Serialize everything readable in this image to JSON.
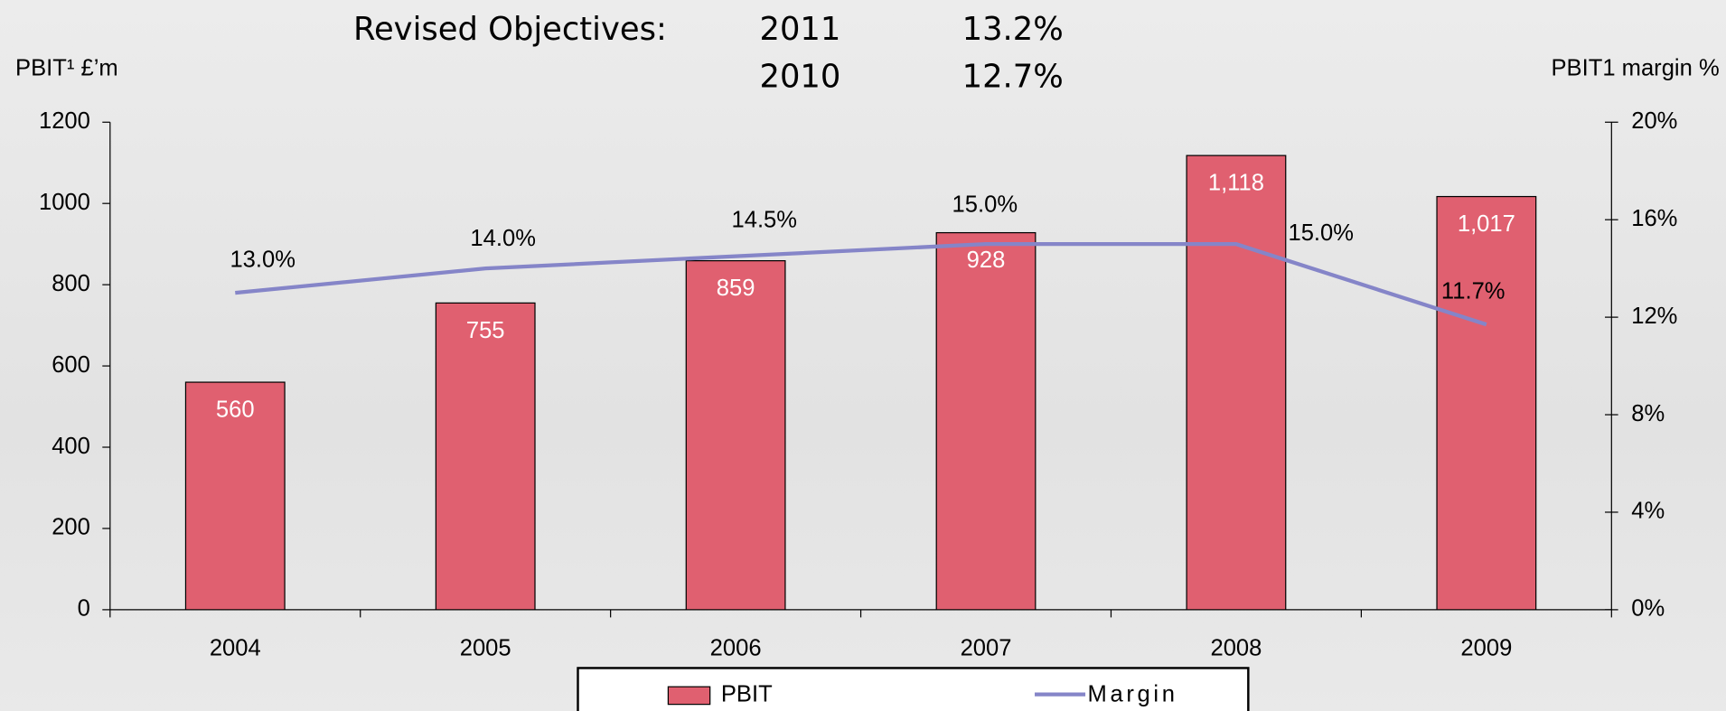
{
  "header": {
    "title": "Revised Objectives:",
    "rows": [
      [
        "2011",
        "13.2%"
      ],
      [
        "2010",
        "12.7%"
      ]
    ]
  },
  "chart_data": {
    "type": "bar",
    "ylabel": "PBIT¹ £’m",
    "y2label": "PBIT1 margin %",
    "categories": [
      "2004",
      "2005",
      "2006",
      "2007",
      "2008",
      "2009"
    ],
    "series": [
      {
        "name": "PBIT",
        "color": "#e06070",
        "values": [
          560,
          755,
          859,
          928,
          1118,
          1017
        ],
        "value_labels": [
          "560",
          "755",
          "859",
          "928",
          "1,118",
          "1,017"
        ]
      },
      {
        "name": "Margin",
        "color": "#8585c8",
        "axis": "y2",
        "values": [
          13.0,
          14.0,
          14.5,
          15.0,
          15.0,
          11.7
        ],
        "value_labels": [
          "13.0%",
          "14.0%",
          "14.5%",
          "15.0%",
          "15.0%",
          "11.7%"
        ]
      }
    ],
    "ylim": [
      0,
      1200
    ],
    "yticks": [
      0,
      200,
      400,
      600,
      800,
      1000,
      1200
    ],
    "y2lim": [
      0,
      20
    ],
    "y2ticks": [
      {
        "value": 0,
        "label": "0%"
      },
      {
        "value": 4,
        "label": "4%"
      },
      {
        "value": 8,
        "label": "8%"
      },
      {
        "value": 12,
        "label": "12%"
      },
      {
        "value": 16,
        "label": "16%"
      },
      {
        "value": 20,
        "label": "20%"
      }
    ],
    "legend": "bottom"
  }
}
